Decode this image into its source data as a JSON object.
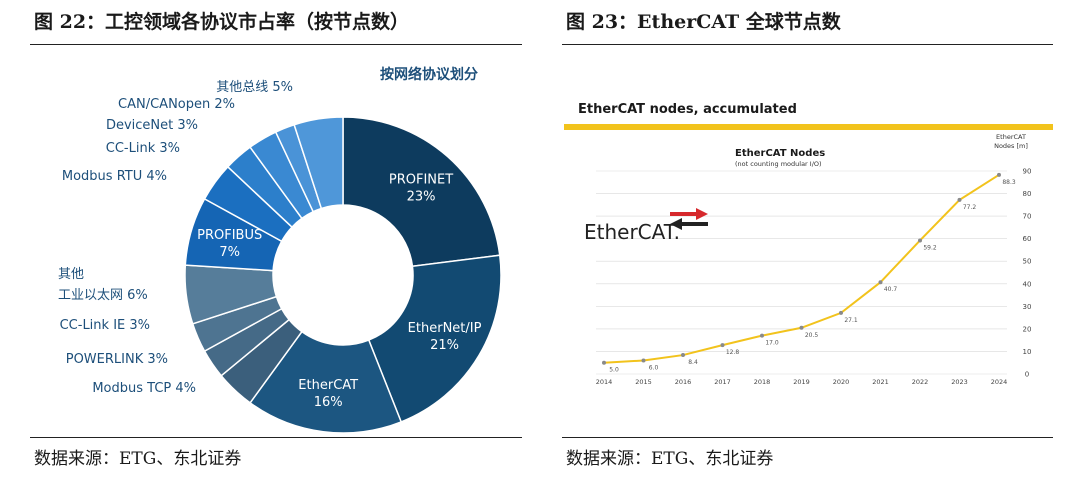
{
  "left": {
    "figure_title": "图 22：工控领域各协议市占率（按节点数）",
    "source": "数据来源：ETG、东北证券"
  },
  "right": {
    "figure_title": "图 23：EtherCAT 全球节点数",
    "source": "数据来源：ETG、东北证券",
    "logo_text": "EtherCAT."
  },
  "chart_data": [
    {
      "type": "pie",
      "title": "按网络协议划分",
      "slices": [
        {
          "label": "PROFINET",
          "value": 23,
          "value_label": "23%",
          "color": "#0d3b5e"
        },
        {
          "label": "EtherNet/IP",
          "value": 21,
          "value_label": "21%",
          "color": "#124a72"
        },
        {
          "label": "EtherCAT",
          "value": 16,
          "value_label": "16%",
          "color": "#1c5681"
        },
        {
          "label": "Modbus TCP",
          "value": 4,
          "value_label": "4%",
          "color": "#3b5f7c"
        },
        {
          "label": "POWERLINK",
          "value": 3,
          "value_label": "3%",
          "color": "#456a87"
        },
        {
          "label": "CC-Link IE",
          "value": 3,
          "value_label": "3%",
          "color": "#4e7491"
        },
        {
          "label": "其他工业以太网",
          "value": 6,
          "value_label": "6%",
          "color": "#567d9a"
        },
        {
          "label": "PROFIBUS",
          "value": 7,
          "value_label": "7%",
          "color": "#1565b4"
        },
        {
          "label": "Modbus RTU",
          "value": 4,
          "value_label": "4%",
          "color": "#1b6fc0"
        },
        {
          "label": "CC-Link",
          "value": 3,
          "value_label": "3%",
          "color": "#2c7fcb"
        },
        {
          "label": "DeviceNet",
          "value": 3,
          "value_label": "3%",
          "color": "#3a89d2"
        },
        {
          "label": "CAN/CANopen",
          "value": 2,
          "value_label": "2%",
          "color": "#4a93d7"
        },
        {
          "label": "其他总线",
          "value": 5,
          "value_label": "5%",
          "color": "#4f97d9"
        }
      ],
      "outside_labels": [
        {
          "text": "其他总线 5%"
        },
        {
          "text": "CAN/CANopen 2%"
        },
        {
          "text": "DeviceNet 3%"
        },
        {
          "text": "CC-Link 3%"
        },
        {
          "text": "Modbus RTU 4%"
        },
        {
          "text": "其他"
        },
        {
          "text": "工业以太网 6%"
        },
        {
          "text": "CC-Link IE 3%"
        },
        {
          "text": "POWERLINK 3%"
        },
        {
          "text": "Modbus TCP 4%"
        }
      ]
    },
    {
      "type": "line",
      "header": "EtherCAT nodes, accumulated",
      "title": "EtherCAT Nodes",
      "subtitle": "(not counting modular I/O)",
      "ylabel_line1": "EtherCAT",
      "ylabel_line2": "Nodes [m]",
      "x": [
        "2014",
        "2015",
        "2016",
        "2017",
        "2018",
        "2019",
        "2020",
        "2021",
        "2022",
        "2023",
        "2024"
      ],
      "y": [
        5.0,
        6.0,
        8.4,
        12.8,
        17.0,
        20.5,
        27.1,
        40.7,
        59.2,
        77.2,
        88.3
      ],
      "point_labels": [
        "5.0",
        "6.0",
        "8.4",
        "12.8",
        "17.0",
        "20.5",
        "27.1",
        "40.7",
        "59.2",
        "77.2",
        "88.3"
      ],
      "yticks": [
        0,
        10,
        20,
        30,
        40,
        50,
        60,
        70,
        80,
        90
      ],
      "ylim": [
        0,
        90
      ],
      "grid": true,
      "line_color": "#f2c31c",
      "accent_bar_color": "#f2c31c"
    }
  ]
}
